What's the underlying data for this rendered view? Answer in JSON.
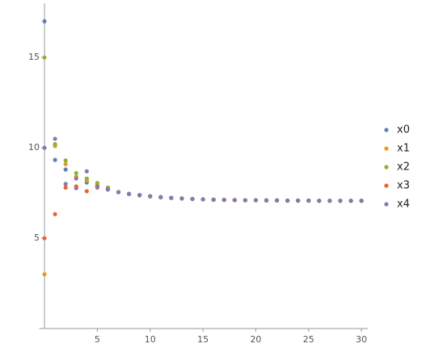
{
  "chart_data": {
    "type": "scatter",
    "x": [
      0,
      1,
      2,
      3,
      4,
      5,
      6,
      7,
      8,
      9,
      10,
      11,
      12,
      13,
      14,
      15,
      16,
      17,
      18,
      19,
      20,
      21,
      22,
      23,
      24,
      25,
      26,
      27,
      28,
      29,
      30
    ],
    "series": [
      {
        "name": "x0",
        "color": "#5e81b5",
        "values": [
          17,
          9.33,
          8.8,
          7.77,
          8.08,
          7.9,
          7.7,
          7.55,
          7.45,
          7.38,
          7.32,
          7.27,
          7.23,
          7.2,
          7.17,
          7.15,
          7.13,
          7.12,
          7.11,
          7.1,
          7.1,
          7.09,
          7.09,
          7.08,
          7.08,
          7.08,
          7.07,
          7.07,
          7.07,
          7.07,
          7.07
        ]
      },
      {
        "name": "x1",
        "color": "#e19c24",
        "values": [
          3,
          10.1,
          9.1,
          8.4,
          8.2,
          8.0,
          7.75,
          7.55,
          7.45,
          7.38,
          7.32,
          7.27,
          7.23,
          7.2,
          7.17,
          7.15,
          7.13,
          7.12,
          7.11,
          7.1,
          7.1,
          7.09,
          7.09,
          7.08,
          7.08,
          7.08,
          7.07,
          7.07,
          7.07,
          7.07,
          7.07
        ]
      },
      {
        "name": "x2",
        "color": "#8fb032",
        "values": [
          15,
          10.2,
          9.3,
          8.6,
          8.3,
          8.05,
          7.8,
          7.55,
          7.45,
          7.38,
          7.32,
          7.27,
          7.23,
          7.2,
          7.17,
          7.15,
          7.13,
          7.12,
          7.11,
          7.1,
          7.1,
          7.09,
          7.09,
          7.08,
          7.08,
          7.08,
          7.07,
          7.07,
          7.07,
          7.07,
          7.07
        ]
      },
      {
        "name": "x3",
        "color": "#eb6235",
        "values": [
          5,
          6.33,
          7.8,
          7.86,
          7.6,
          7.8,
          7.7,
          7.55,
          7.45,
          7.38,
          7.32,
          7.27,
          7.23,
          7.2,
          7.17,
          7.15,
          7.13,
          7.12,
          7.11,
          7.1,
          7.1,
          7.09,
          7.09,
          7.08,
          7.08,
          7.08,
          7.07,
          7.07,
          7.07,
          7.07,
          7.07
        ]
      },
      {
        "name": "x4",
        "color": "#8778b3",
        "values": [
          10,
          10.5,
          8.0,
          8.3,
          8.7,
          7.85,
          7.7,
          7.55,
          7.45,
          7.38,
          7.32,
          7.27,
          7.23,
          7.2,
          7.17,
          7.15,
          7.13,
          7.12,
          7.11,
          7.1,
          7.1,
          7.09,
          7.09,
          7.08,
          7.08,
          7.08,
          7.07,
          7.07,
          7.07,
          7.07,
          7.07
        ]
      }
    ],
    "xlim": [
      -0.5,
      30.6
    ],
    "ylim": [
      0,
      18
    ],
    "xticks": [
      5,
      10,
      15,
      20,
      25,
      30
    ],
    "yticks": [
      5,
      10,
      15
    ],
    "legend": "right"
  }
}
